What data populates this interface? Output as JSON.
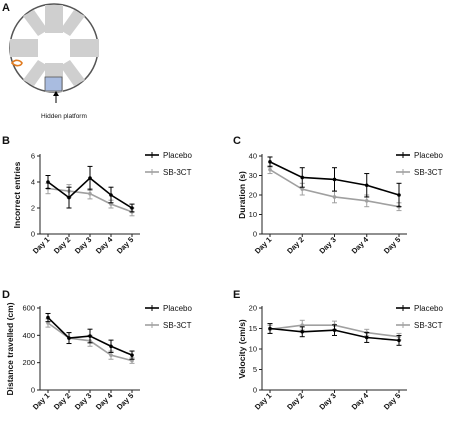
{
  "schematic": {
    "letter": "A",
    "annotation": "Hidden platform"
  },
  "chart_data": [
    {
      "panel": "B",
      "type": "line",
      "ylabel": "Incorrect entries",
      "categories": [
        "Day 1",
        "Day 2",
        "Day 3",
        "Day 4",
        "Day 5"
      ],
      "ylim": [
        0,
        6
      ],
      "yticks": [
        0,
        2,
        4,
        6
      ],
      "legend": "top-right",
      "series": [
        {
          "name": "Placebo",
          "color": "#000000",
          "values": [
            4.0,
            2.8,
            4.3,
            3.0,
            2.0
          ],
          "errors": [
            0.5,
            0.8,
            0.9,
            0.6,
            0.3
          ]
        },
        {
          "name": "SB-3CT",
          "color": "#a0a0a0",
          "values": [
            3.5,
            3.3,
            3.1,
            2.3,
            1.7
          ],
          "errors": [
            0.4,
            0.5,
            0.4,
            0.3,
            0.3
          ]
        }
      ]
    },
    {
      "panel": "C",
      "type": "line",
      "ylabel": "Duration (s)",
      "categories": [
        "Day 1",
        "Day 2",
        "Day 3",
        "Day 4",
        "Day 5"
      ],
      "ylim": [
        0,
        40
      ],
      "yticks": [
        0,
        10,
        20,
        30,
        40
      ],
      "legend": "top-right",
      "series": [
        {
          "name": "Placebo",
          "color": "#000000",
          "values": [
            37,
            29,
            28,
            25,
            20
          ],
          "errors": [
            2.5,
            5,
            6,
            6,
            6
          ]
        },
        {
          "name": "SB-3CT",
          "color": "#a0a0a0",
          "values": [
            33,
            23,
            19,
            17,
            14
          ],
          "errors": [
            2,
            3,
            3,
            3,
            2
          ]
        }
      ]
    },
    {
      "panel": "D",
      "type": "line",
      "ylabel": "Distance travelled (cm)",
      "categories": [
        "Day 1",
        "Day 2",
        "Day 3",
        "Day 4",
        "Day 5"
      ],
      "ylim": [
        0,
        600
      ],
      "yticks": [
        0,
        200,
        400,
        600
      ],
      "legend": "top-right",
      "series": [
        {
          "name": "Placebo",
          "color": "#000000",
          "values": [
            530,
            380,
            395,
            320,
            255
          ],
          "errors": [
            30,
            40,
            50,
            45,
            30
          ]
        },
        {
          "name": "SB-3CT",
          "color": "#a0a0a0",
          "values": [
            490,
            380,
            360,
            255,
            215
          ],
          "errors": [
            30,
            40,
            40,
            30,
            20
          ]
        }
      ]
    },
    {
      "panel": "E",
      "type": "line",
      "ylabel": "Velocity (cm/s)",
      "categories": [
        "Day 1",
        "Day 2",
        "Day 3",
        "Day 4",
        "Day 5"
      ],
      "ylim": [
        0,
        20
      ],
      "yticks": [
        0,
        5,
        10,
        15,
        20
      ],
      "legend": "top-right",
      "series": [
        {
          "name": "Placebo",
          "color": "#000000",
          "values": [
            15.0,
            14.2,
            14.6,
            12.8,
            12.1
          ],
          "errors": [
            1.2,
            1.2,
            1.3,
            1.2,
            1.2
          ]
        },
        {
          "name": "SB-3CT",
          "color": "#a0a0a0",
          "values": [
            14.8,
            15.8,
            15.8,
            14.0,
            13.0
          ],
          "errors": [
            1.0,
            1.2,
            1.0,
            0.8,
            0.8
          ]
        }
      ]
    }
  ]
}
